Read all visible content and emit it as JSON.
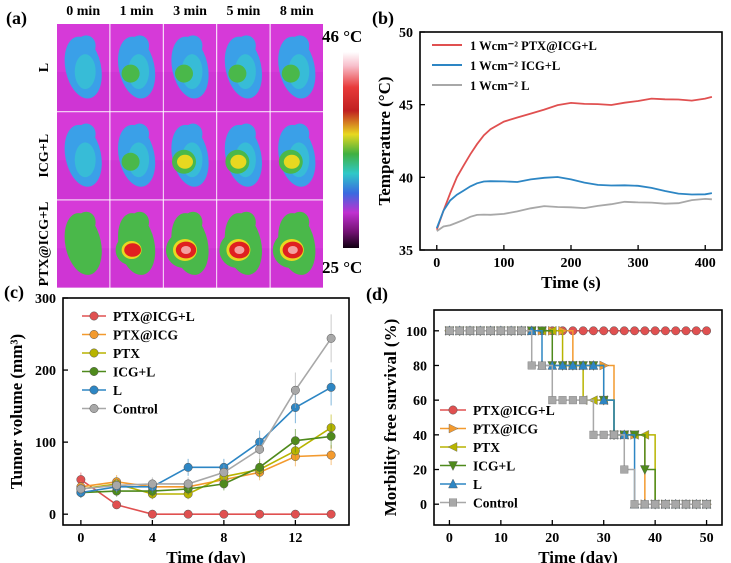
{
  "colors": {
    "red": "#e05050",
    "orange": "#f39a2e",
    "olive": "#b8b400",
    "green": "#4f8a1c",
    "blue": "#2d86c4",
    "gray": "#a8a8a8",
    "ir_magenta": "#d63ad8",
    "ir_blue": "#3aa0e8",
    "ir_cyan": "#36c8d0",
    "ir_green": "#4ab84a",
    "ir_yellow": "#e8d820",
    "ir_red": "#e02020"
  },
  "panel_a": {
    "label": "(a)",
    "time_headers": [
      "0 min",
      "1 min",
      "3 min",
      "5 min",
      "8 min"
    ],
    "row_labels": [
      "L",
      "ICG+L",
      "PTX@ICG+L"
    ],
    "scale_max": "46 °C",
    "scale_min": "25 °C",
    "thermal_intensity": [
      [
        0,
        1,
        1,
        1,
        1
      ],
      [
        0,
        1,
        2,
        2,
        2
      ],
      [
        1,
        3,
        4,
        4,
        4
      ]
    ]
  },
  "chart_data": [
    {
      "panel": "(b)",
      "type": "line",
      "title": "",
      "xlabel": "Time (s)",
      "ylabel": "Temperature (°C)",
      "xlim": [
        -25,
        425
      ],
      "ylim": [
        35,
        50
      ],
      "xticks": [
        0,
        100,
        200,
        300,
        400
      ],
      "yticks": [
        35,
        40,
        45,
        50
      ],
      "x": [
        0,
        10,
        20,
        30,
        40,
        50,
        60,
        70,
        80,
        100,
        120,
        140,
        160,
        180,
        200,
        220,
        240,
        260,
        280,
        300,
        320,
        340,
        360,
        380,
        400,
        410
      ],
      "series": [
        {
          "name": "1 Wcm⁻² PTX@ICG+L",
          "color": "#e05050",
          "values": [
            36.4,
            37.6,
            38.8,
            40.0,
            40.9,
            41.7,
            42.3,
            42.8,
            43.2,
            43.8,
            44.2,
            44.5,
            44.7,
            44.9,
            45.0,
            45.0,
            45.1,
            45.1,
            45.2,
            45.2,
            45.3,
            45.3,
            45.4,
            45.4,
            45.5,
            45.5
          ]
        },
        {
          "name": "1 Wcm⁻² ICG+L",
          "color": "#2d86c4",
          "values": [
            36.5,
            37.6,
            38.4,
            38.9,
            39.2,
            39.4,
            39.5,
            39.6,
            39.7,
            39.8,
            39.8,
            39.9,
            39.9,
            39.9,
            39.8,
            39.7,
            39.6,
            39.5,
            39.4,
            39.3,
            39.2,
            39.1,
            39.0,
            38.9,
            38.8,
            38.8
          ]
        },
        {
          "name": "1 Wcm⁻² L",
          "color": "#a8a8a8",
          "values": [
            36.3,
            36.6,
            36.8,
            37.0,
            37.1,
            37.2,
            37.3,
            37.4,
            37.5,
            37.6,
            37.7,
            37.8,
            37.9,
            37.9,
            38.0,
            38.0,
            38.1,
            38.1,
            38.2,
            38.2,
            38.3,
            38.3,
            38.3,
            38.4,
            38.4,
            38.4
          ]
        }
      ]
    },
    {
      "panel": "(c)",
      "type": "line",
      "title": "",
      "xlabel": "Time (day)",
      "ylabel": "Tumor volume (mm³)",
      "xlim": [
        -1,
        15
      ],
      "ylim": [
        -15,
        300
      ],
      "xticks": [
        0,
        4,
        8,
        12
      ],
      "yticks": [
        0,
        100,
        200,
        300
      ],
      "x": [
        0,
        2,
        4,
        6,
        8,
        10,
        12,
        14
      ],
      "series": [
        {
          "name": "PTX@ICG+L",
          "color": "#e05050",
          "values": [
            48,
            13,
            0,
            0,
            0,
            0,
            0,
            0
          ]
        },
        {
          "name": "PTX@ICG",
          "color": "#f39a2e",
          "values": [
            38,
            45,
            38,
            38,
            48,
            58,
            80,
            82
          ]
        },
        {
          "name": "PTX",
          "color": "#b8b400",
          "values": [
            35,
            42,
            28,
            28,
            52,
            62,
            88,
            120
          ]
        },
        {
          "name": "ICG+L",
          "color": "#4f8a1c",
          "values": [
            30,
            32,
            32,
            35,
            42,
            65,
            102,
            108
          ]
        },
        {
          "name": "L",
          "color": "#2d86c4",
          "values": [
            30,
            38,
            38,
            65,
            65,
            100,
            148,
            176
          ]
        },
        {
          "name": "Control",
          "color": "#a8a8a8",
          "values": [
            35,
            40,
            42,
            42,
            58,
            90,
            172,
            244
          ]
        }
      ]
    },
    {
      "panel": "(d)",
      "type": "line",
      "title": "",
      "xlabel": "Time (day)",
      "ylabel": "Morbility free survival (%)",
      "xlim": [
        -3,
        53
      ],
      "ylim": [
        -12,
        112
      ],
      "xticks": [
        0,
        10,
        20,
        30,
        40,
        50
      ],
      "yticks": [
        0,
        20,
        40,
        60,
        80,
        100
      ],
      "x": [
        0,
        2,
        4,
        6,
        8,
        10,
        12,
        14,
        16,
        18,
        20,
        22,
        24,
        26,
        28,
        30,
        32,
        34,
        36,
        38,
        40,
        42,
        44,
        46,
        48,
        50
      ],
      "series": [
        {
          "name": "PTX@ICG+L",
          "color": "#e05050",
          "values": [
            100,
            100,
            100,
            100,
            100,
            100,
            100,
            100,
            100,
            100,
            100,
            100,
            100,
            100,
            100,
            100,
            100,
            100,
            100,
            100,
            100,
            100,
            100,
            100,
            100,
            100
          ]
        },
        {
          "name": "PTX@ICG",
          "color": "#f39a2e",
          "values": [
            100,
            100,
            100,
            100,
            100,
            100,
            100,
            100,
            100,
            100,
            100,
            100,
            80,
            80,
            80,
            80,
            40,
            40,
            40,
            0,
            0,
            0,
            0,
            0,
            0,
            0
          ]
        },
        {
          "name": "PTX",
          "color": "#b8b400",
          "values": [
            100,
            100,
            100,
            100,
            100,
            100,
            100,
            100,
            100,
            100,
            100,
            80,
            80,
            60,
            60,
            60,
            40,
            40,
            40,
            40,
            0,
            0,
            0,
            0,
            0,
            0
          ]
        },
        {
          "name": "ICG+L",
          "color": "#4f8a1c",
          "values": [
            100,
            100,
            100,
            100,
            100,
            100,
            100,
            100,
            100,
            100,
            80,
            80,
            80,
            80,
            80,
            60,
            40,
            40,
            40,
            20,
            0,
            0,
            0,
            0,
            0,
            0
          ]
        },
        {
          "name": "L",
          "color": "#2d86c4",
          "values": [
            100,
            100,
            100,
            100,
            100,
            100,
            100,
            100,
            100,
            80,
            80,
            80,
            80,
            80,
            80,
            60,
            40,
            40,
            0,
            0,
            0,
            0,
            0,
            0,
            0,
            0
          ]
        },
        {
          "name": "Control",
          "color": "#a8a8a8",
          "values": [
            100,
            100,
            100,
            100,
            100,
            100,
            100,
            100,
            80,
            80,
            60,
            60,
            60,
            60,
            40,
            40,
            40,
            20,
            0,
            0,
            0,
            0,
            0,
            0,
            0,
            0
          ]
        }
      ]
    }
  ]
}
